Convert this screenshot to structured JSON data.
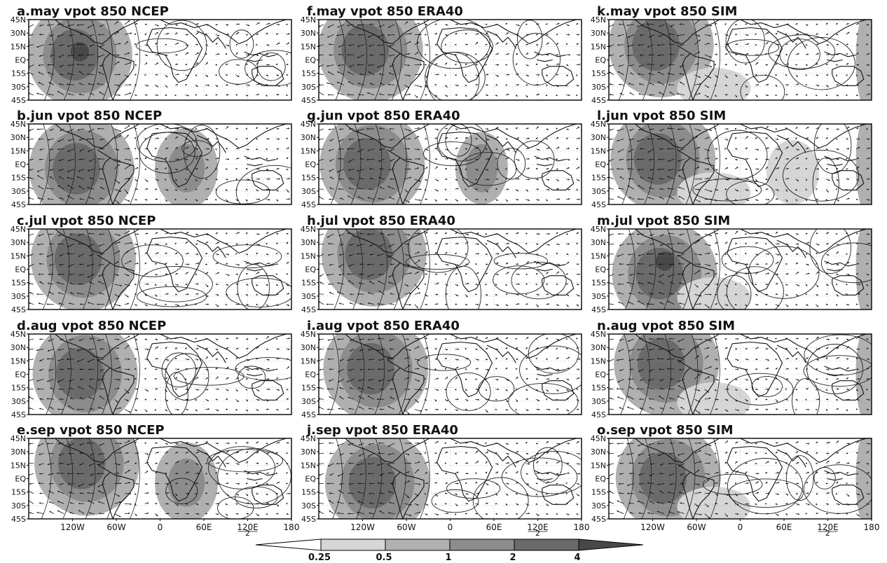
{
  "figure": {
    "panels": [
      {
        "id": "a",
        "title": "a.may  vpot  850  NCEP"
      },
      {
        "id": "f",
        "title": "f.may  vpot  850  ERA40"
      },
      {
        "id": "k",
        "title": "k.may  vpot  850  SIM"
      },
      {
        "id": "b",
        "title": "b.jun  vpot  850  NCEP"
      },
      {
        "id": "g",
        "title": "g.jun  vpot  850  ERA40"
      },
      {
        "id": "l",
        "title": "l.jun  vpot  850  SIM"
      },
      {
        "id": "c",
        "title": "c.jul  vpot  850  NCEP"
      },
      {
        "id": "h",
        "title": "h.jul  vpot  850  ERA40"
      },
      {
        "id": "m",
        "title": "m.jul  vpot  850  SIM"
      },
      {
        "id": "d",
        "title": "d.aug  vpot  850  NCEP"
      },
      {
        "id": "i",
        "title": "i.aug  vpot  850  ERA40"
      },
      {
        "id": "n",
        "title": "n.aug  vpot  850  SIM"
      },
      {
        "id": "e",
        "title": "e.sep  vpot  850  NCEP"
      },
      {
        "id": "j",
        "title": "j.sep  vpot  850  ERA40"
      },
      {
        "id": "o",
        "title": "o.sep  vpot  850  SIM"
      }
    ],
    "lat_labels": [
      "45N",
      "30N",
      "15N",
      "EQ",
      "15S",
      "30S",
      "45S"
    ],
    "lon_labels": [
      "120W",
      "60W",
      "0",
      "60E",
      "120E",
      "180"
    ],
    "lon_label_sub": "2",
    "colorbar": {
      "levels": [
        "0.25",
        "0.5",
        "1",
        "2",
        "4"
      ],
      "colors": [
        "#ffffff",
        "#d6d6d6",
        "#b0b0b0",
        "#8c8c8c",
        "#6a6a6a",
        "#484848"
      ]
    }
  }
}
